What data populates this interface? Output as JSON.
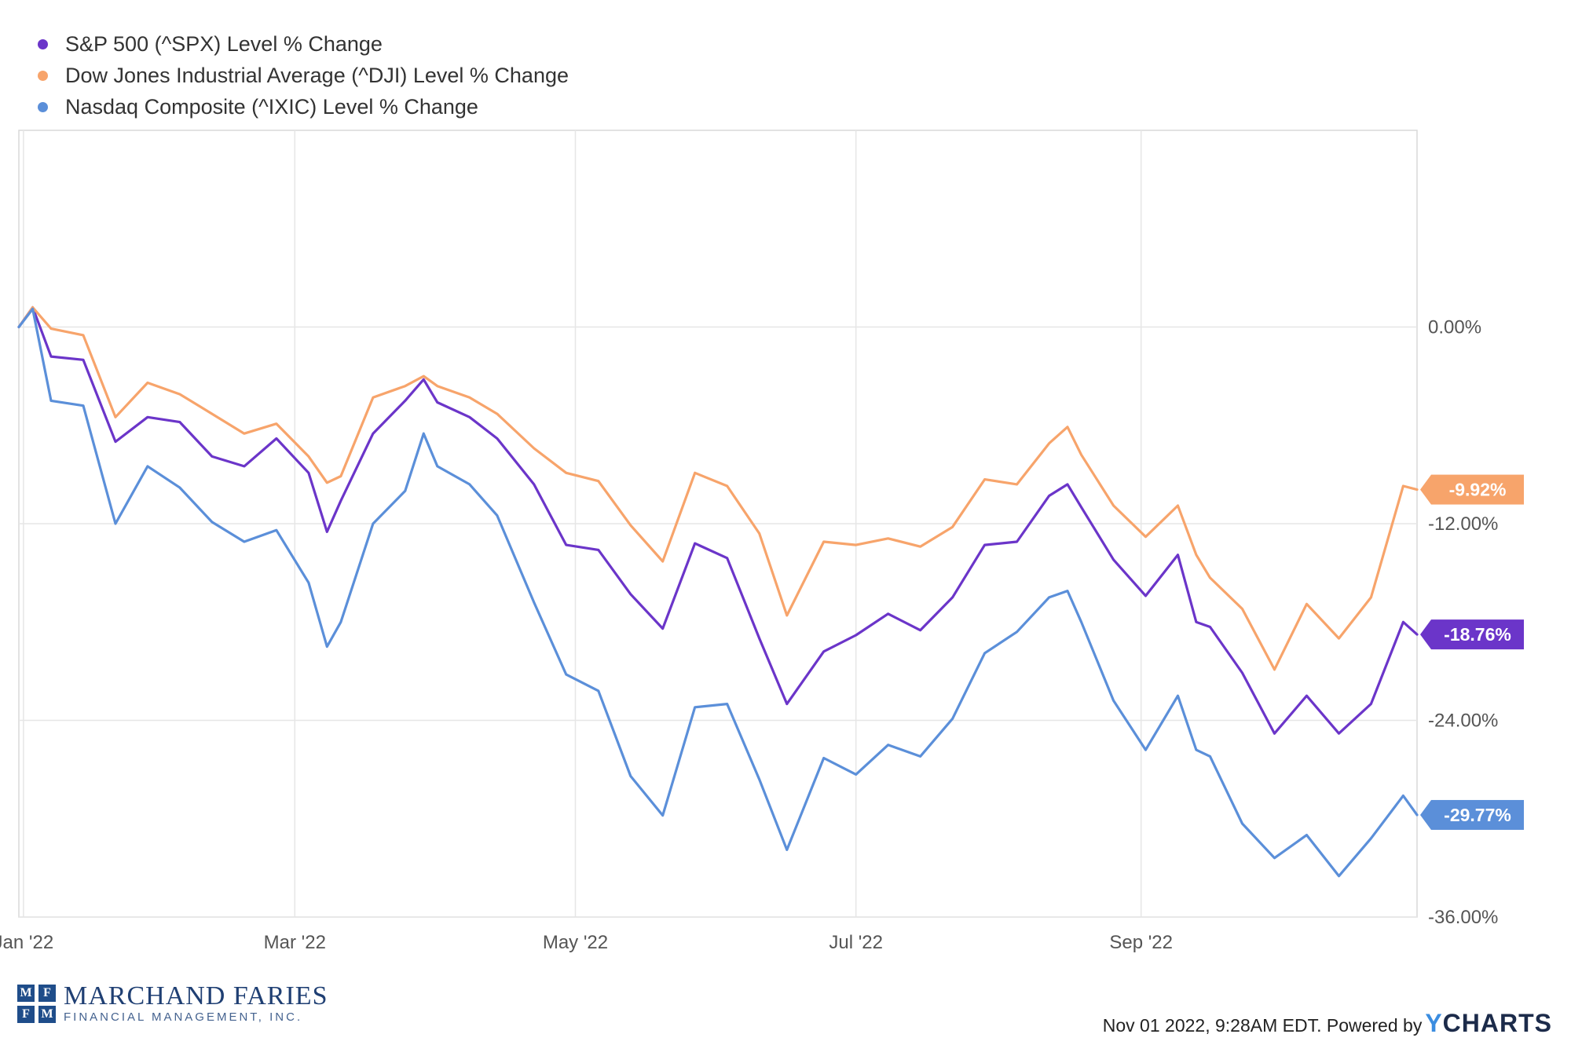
{
  "chart_data": {
    "type": "line",
    "title": "",
    "xlabel": "",
    "ylabel": "",
    "x_ticks": [
      "Jan '22",
      "Mar '22",
      "May '22",
      "Jul '22",
      "Sep '22"
    ],
    "y_ticks": [
      "0.00%",
      "-12.00%",
      "-24.00%",
      "-36.00%"
    ],
    "y_tick_values": [
      0,
      -12,
      -24,
      -36
    ],
    "ylim": [
      -36,
      12
    ],
    "xlim": [
      "2021-12-31",
      "2022-10-31"
    ],
    "grid": true,
    "legend_position": "top-left",
    "series": [
      {
        "name": "S&P 500 (^SPX) Level % Change",
        "color": "#6b35c9",
        "end_label": "-18.76%",
        "x": [
          "2021-12-31",
          "2022-01-03",
          "2022-01-07",
          "2022-01-14",
          "2022-01-21",
          "2022-01-28",
          "2022-02-04",
          "2022-02-11",
          "2022-02-18",
          "2022-02-25",
          "2022-03-04",
          "2022-03-08",
          "2022-03-11",
          "2022-03-18",
          "2022-03-25",
          "2022-03-29",
          "2022-04-01",
          "2022-04-08",
          "2022-04-14",
          "2022-04-22",
          "2022-04-29",
          "2022-05-06",
          "2022-05-13",
          "2022-05-20",
          "2022-05-27",
          "2022-06-03",
          "2022-06-10",
          "2022-06-16",
          "2022-06-24",
          "2022-07-01",
          "2022-07-08",
          "2022-07-15",
          "2022-07-22",
          "2022-07-29",
          "2022-08-05",
          "2022-08-12",
          "2022-08-16",
          "2022-08-19",
          "2022-08-26",
          "2022-09-02",
          "2022-09-09",
          "2022-09-13",
          "2022-09-16",
          "2022-09-23",
          "2022-09-30",
          "2022-10-07",
          "2022-10-14",
          "2022-10-21",
          "2022-10-28",
          "2022-10-31"
        ],
        "values": [
          0.0,
          1.2,
          -1.8,
          -2.0,
          -7.0,
          -5.5,
          -5.8,
          -7.9,
          -8.5,
          -6.8,
          -8.9,
          -12.5,
          -10.6,
          -6.5,
          -4.5,
          -3.2,
          -4.6,
          -5.5,
          -6.8,
          -9.6,
          -13.3,
          -13.6,
          -16.3,
          -18.4,
          -13.2,
          -14.1,
          -19.0,
          -23.0,
          -19.8,
          -18.8,
          -17.5,
          -18.5,
          -16.5,
          -13.3,
          -13.1,
          -10.3,
          -9.6,
          -11.0,
          -14.2,
          -16.4,
          -13.9,
          -18.0,
          -18.3,
          -21.1,
          -24.8,
          -22.5,
          -24.8,
          -23.0,
          -18.0,
          -18.76
        ]
      },
      {
        "name": "Dow Jones Industrial Average (^DJI) Level % Change",
        "color": "#f7a46b",
        "end_label": "-9.92%",
        "x": [
          "2021-12-31",
          "2022-01-03",
          "2022-01-07",
          "2022-01-14",
          "2022-01-21",
          "2022-01-28",
          "2022-02-04",
          "2022-02-11",
          "2022-02-18",
          "2022-02-25",
          "2022-03-04",
          "2022-03-08",
          "2022-03-11",
          "2022-03-18",
          "2022-03-25",
          "2022-03-29",
          "2022-04-01",
          "2022-04-08",
          "2022-04-14",
          "2022-04-22",
          "2022-04-29",
          "2022-05-06",
          "2022-05-13",
          "2022-05-20",
          "2022-05-27",
          "2022-06-03",
          "2022-06-10",
          "2022-06-16",
          "2022-06-24",
          "2022-07-01",
          "2022-07-08",
          "2022-07-15",
          "2022-07-22",
          "2022-07-29",
          "2022-08-05",
          "2022-08-12",
          "2022-08-16",
          "2022-08-19",
          "2022-08-26",
          "2022-09-02",
          "2022-09-09",
          "2022-09-13",
          "2022-09-16",
          "2022-09-23",
          "2022-09-30",
          "2022-10-07",
          "2022-10-14",
          "2022-10-21",
          "2022-10-28",
          "2022-10-31"
        ],
        "values": [
          0.0,
          1.2,
          -0.1,
          -0.5,
          -5.5,
          -3.4,
          -4.1,
          -5.3,
          -6.5,
          -5.9,
          -7.9,
          -9.5,
          -9.1,
          -4.3,
          -3.6,
          -3.0,
          -3.6,
          -4.3,
          -5.3,
          -7.4,
          -8.9,
          -9.4,
          -12.1,
          -14.3,
          -8.9,
          -9.7,
          -12.6,
          -17.6,
          -13.1,
          -13.3,
          -12.9,
          -13.4,
          -12.2,
          -9.3,
          -9.6,
          -7.1,
          -6.1,
          -7.8,
          -10.9,
          -12.8,
          -10.9,
          -13.9,
          -15.3,
          -17.2,
          -20.9,
          -16.9,
          -19.0,
          -16.5,
          -9.7,
          -9.92
        ]
      },
      {
        "name": "Nasdaq Composite (^IXIC) Level % Change",
        "color": "#5b8fd9",
        "end_label": "-29.77%",
        "x": [
          "2021-12-31",
          "2022-01-03",
          "2022-01-07",
          "2022-01-14",
          "2022-01-21",
          "2022-01-28",
          "2022-02-04",
          "2022-02-11",
          "2022-02-18",
          "2022-02-25",
          "2022-03-04",
          "2022-03-08",
          "2022-03-11",
          "2022-03-18",
          "2022-03-25",
          "2022-03-29",
          "2022-04-01",
          "2022-04-08",
          "2022-04-14",
          "2022-04-22",
          "2022-04-29",
          "2022-05-06",
          "2022-05-13",
          "2022-05-20",
          "2022-05-27",
          "2022-06-03",
          "2022-06-10",
          "2022-06-16",
          "2022-06-24",
          "2022-07-01",
          "2022-07-08",
          "2022-07-15",
          "2022-07-22",
          "2022-07-29",
          "2022-08-05",
          "2022-08-12",
          "2022-08-16",
          "2022-08-19",
          "2022-08-26",
          "2022-09-02",
          "2022-09-09",
          "2022-09-13",
          "2022-09-16",
          "2022-09-23",
          "2022-09-30",
          "2022-10-07",
          "2022-10-14",
          "2022-10-21",
          "2022-10-28",
          "2022-10-31"
        ],
        "values": [
          0.0,
          1.1,
          -4.5,
          -4.8,
          -12.0,
          -8.5,
          -9.8,
          -11.9,
          -13.1,
          -12.4,
          -15.6,
          -19.5,
          -18.0,
          -12.0,
          -10.0,
          -6.5,
          -8.5,
          -9.6,
          -11.5,
          -16.8,
          -21.2,
          -22.2,
          -27.4,
          -29.8,
          -23.2,
          -23.0,
          -27.6,
          -31.9,
          -26.3,
          -27.3,
          -25.5,
          -26.2,
          -23.9,
          -19.9,
          -18.6,
          -16.5,
          -16.1,
          -18.0,
          -22.8,
          -25.8,
          -22.5,
          -25.8,
          -26.2,
          -30.3,
          -32.4,
          -31.0,
          -33.5,
          -31.2,
          -28.6,
          -29.77
        ]
      }
    ]
  },
  "branding": {
    "logo_letters": [
      "M",
      "F",
      "F",
      "M"
    ],
    "logo_name": "MARCHAND FARIES",
    "logo_subtitle": "FINANCIAL MANAGEMENT, INC.",
    "logo_color": "#1f3f73"
  },
  "footer": {
    "timestamp_text": "Nov 01 2022, 9:28AM EDT. Powered by",
    "brand_y": "Y",
    "brand_rest": "CHARTS"
  }
}
